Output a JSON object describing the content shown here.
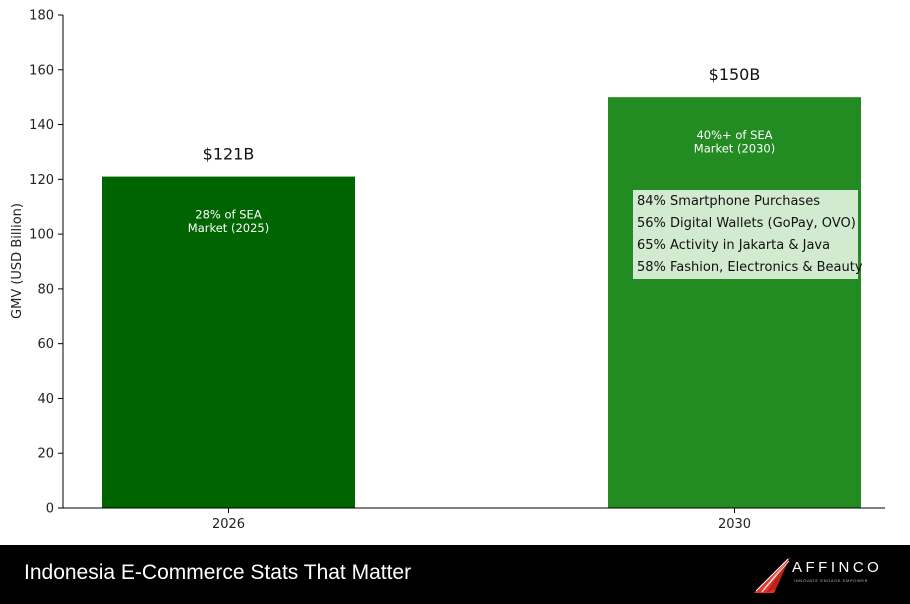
{
  "chart_data": {
    "type": "bar",
    "categories": [
      "2026",
      "2030"
    ],
    "values": [
      121,
      150
    ],
    "value_labels": [
      "$121B",
      "$150B"
    ],
    "inner_labels": [
      [
        "28% of SEA",
        "Market (2025)"
      ],
      [
        "40%+ of SEA",
        "Market (2030)"
      ]
    ],
    "bar_colors": [
      "#006400",
      "#228B22"
    ],
    "ylabel": "GMV (USD Billion)",
    "xlabel": "",
    "ylim": [
      0,
      180
    ],
    "yticks": [
      0,
      20,
      40,
      60,
      80,
      100,
      120,
      140,
      160,
      180
    ],
    "grid": false,
    "annotation": {
      "lines": [
        "84% Smartphone Purchases",
        "56% Digital Wallets (GoPay, OVO)",
        "65% Activity in Jakarta & Java",
        "58% Fashion, Electronics & Beauty"
      ],
      "background": "#dcefd9"
    }
  },
  "footer": {
    "title": "Indonesia E-Commerce Stats That Matter",
    "background": "#000000",
    "logo": {
      "icon": "affinco-logo-icon",
      "wordmark": "AFFINCO",
      "tagline": "INNOVATE   ENGAGE   EMPOWER",
      "accent": "#e63329"
    }
  }
}
